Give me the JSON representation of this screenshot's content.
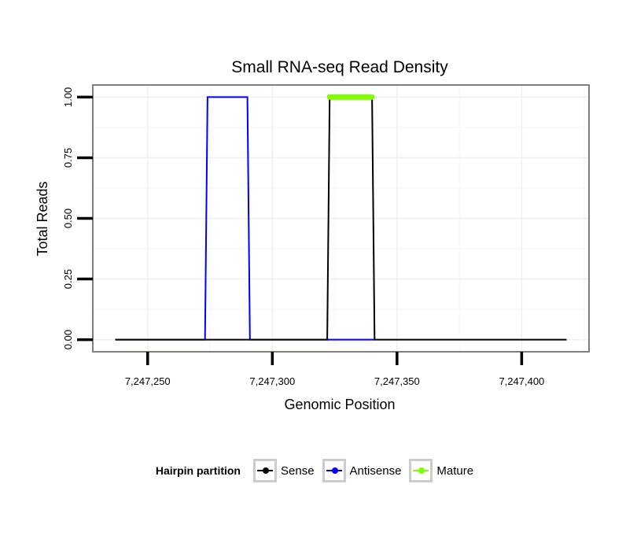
{
  "chart_data": {
    "type": "line",
    "title": "Small RNA-seq Read Density",
    "xlabel": "Genomic Position",
    "ylabel": "Total Reads",
    "xlim": [
      7247228,
      7247427
    ],
    "ylim": [
      -0.05,
      1.05
    ],
    "x_ticks": [
      7247250,
      7247300,
      7247350,
      7247400
    ],
    "x_tick_labels": [
      "7,247,250",
      "7,247,300",
      "7,247,350",
      "7,247,400"
    ],
    "y_ticks": [
      0,
      0.25,
      0.5,
      0.75,
      1.0
    ],
    "y_tick_labels": [
      "0.00",
      "0.25",
      "0.50",
      "0.75",
      "1.00"
    ],
    "grid": true,
    "legend_title": "Hairpin partition",
    "legend_position": "bottom",
    "series": [
      {
        "name": "Sense",
        "color": "#000000",
        "x": [
          7247237,
          7247322,
          7247323,
          7247340,
          7247341,
          7247418
        ],
        "y": [
          0,
          0,
          1,
          1,
          0,
          0
        ]
      },
      {
        "name": "Antisense",
        "color": "#0000ff",
        "x": [
          7247237,
          7247273,
          7247274,
          7247290,
          7247291,
          7247341
        ],
        "y": [
          0,
          0,
          1,
          1,
          0,
          0
        ]
      },
      {
        "name": "Mature",
        "color": "#7fff00",
        "x": [
          7247323,
          7247340
        ],
        "y": [
          1,
          1
        ]
      }
    ]
  }
}
